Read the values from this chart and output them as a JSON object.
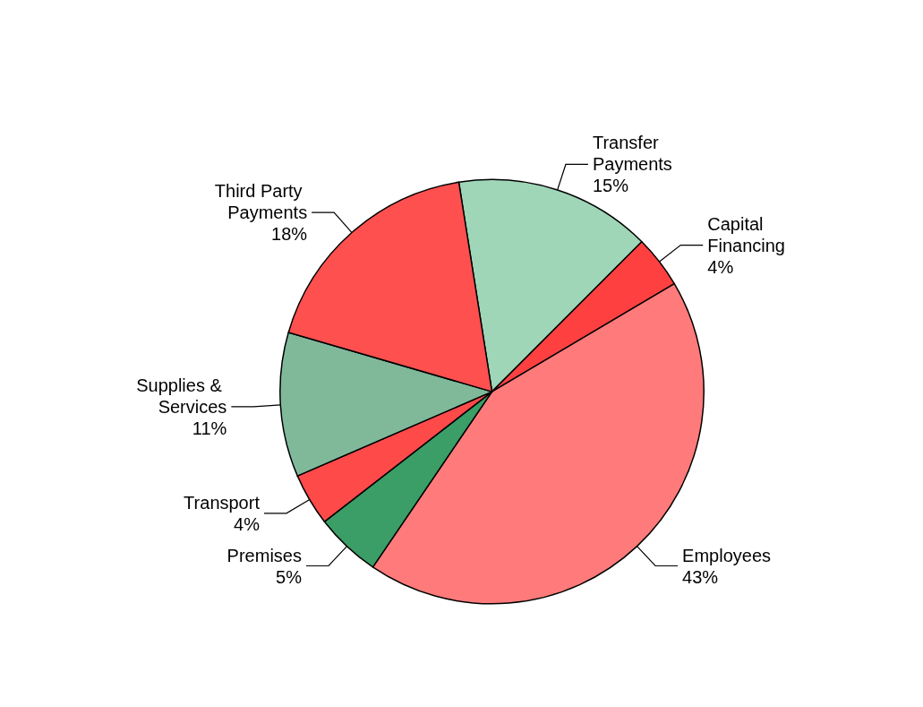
{
  "chart_data": {
    "type": "pie",
    "categories": [
      "Transfer Payments",
      "Capital Financing",
      "Employees",
      "Premises",
      "Transport",
      "Supplies & Services",
      "Third Party Payments"
    ],
    "values": [
      15,
      4,
      43,
      5,
      4,
      11,
      18
    ],
    "value_labels": [
      "15%",
      "4%",
      "43%",
      "5%",
      "4%",
      "11%",
      "18%"
    ],
    "colors": [
      "#9fd6b8",
      "#ff4040",
      "#ff7b7b",
      "#3a9e66",
      "#ff4a4a",
      "#80b99a",
      "#ff5050"
    ],
    "legend": false
  }
}
